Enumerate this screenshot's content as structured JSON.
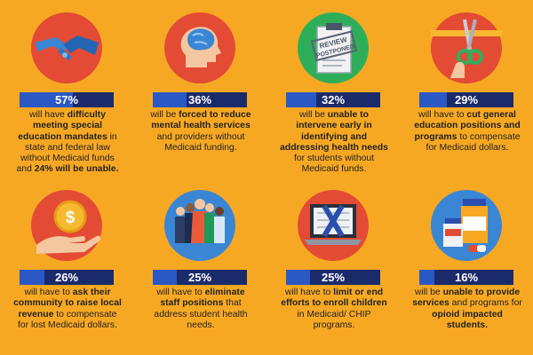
{
  "colors": {
    "background": "#f7a823",
    "bar": "#1b2a6b",
    "bar_fill": "#2a58c4",
    "icon_circle": "#e34b35",
    "text": "#222222"
  },
  "icons": {
    "c1": "handshake-icon",
    "c2": "brain-head-icon",
    "c3": {
      "name": "clipboard-stamp-icon",
      "stamp_line1": "REVIEW",
      "stamp_line2": "POSTPONED"
    },
    "c4": "scissors-cutting-ribbon-icon",
    "c5": "hand-holding-dollar-coin-icon",
    "c6": "group-of-people-icon",
    "c7": "laptop-x-icon",
    "c8": "pill-bottles-icon"
  },
  "chart_data": {
    "type": "bar",
    "title": "",
    "categories": [
      "Special education mandates",
      "Mental health services",
      "Early intervention for health needs",
      "General education positions and programs",
      "Ask community to raise local revenue",
      "Staff positions addressing student health needs",
      "Enrollment of children in Medicaid/CHIP",
      "Services for opioid impacted students"
    ],
    "values": [
      57,
      36,
      32,
      29,
      26,
      25,
      25,
      16
    ],
    "labels": [
      "57%",
      "36%",
      "32%",
      "29%",
      "26%",
      "25%",
      "25%",
      "16%"
    ],
    "ylim": [
      0,
      100
    ],
    "descriptions": [
      {
        "pre": "will have ",
        "bold": "difficulty meeting special education mandates",
        "post": " in state and federal law without Medicaid funds and ",
        "bold2": "24% will be unable.",
        "post2": ""
      },
      {
        "pre": "will be ",
        "bold": "forced to reduce mental health services",
        "post": " and providers without Medicaid funding.",
        "bold2": "",
        "post2": ""
      },
      {
        "pre": "will be ",
        "bold": "unable to intervene early in identifying and addressing health needs",
        "post": " for students without Medicaid funds.",
        "bold2": "",
        "post2": ""
      },
      {
        "pre": "will have to ",
        "bold": "cut general education positions and programs",
        "post": " to compensate for Medicaid dollars.",
        "bold2": "",
        "post2": ""
      },
      {
        "pre": "will have to ",
        "bold": "ask their community to raise local revenue",
        "post": " to compensate for lost Medicaid dollars.",
        "bold2": "",
        "post2": ""
      },
      {
        "pre": "will have to ",
        "bold": "eliminate staff positions",
        "post": " that address student health needs.",
        "bold2": "",
        "post2": ""
      },
      {
        "pre": "will have to ",
        "bold": "limit or end efforts to enroll children",
        "post": " in Medicaid/ CHIP programs.",
        "bold2": "",
        "post2": ""
      },
      {
        "pre": "will be ",
        "bold": "unable to provide services",
        "post": " and programs for ",
        "bold2": "opioid impacted students.",
        "post2": ""
      }
    ]
  }
}
